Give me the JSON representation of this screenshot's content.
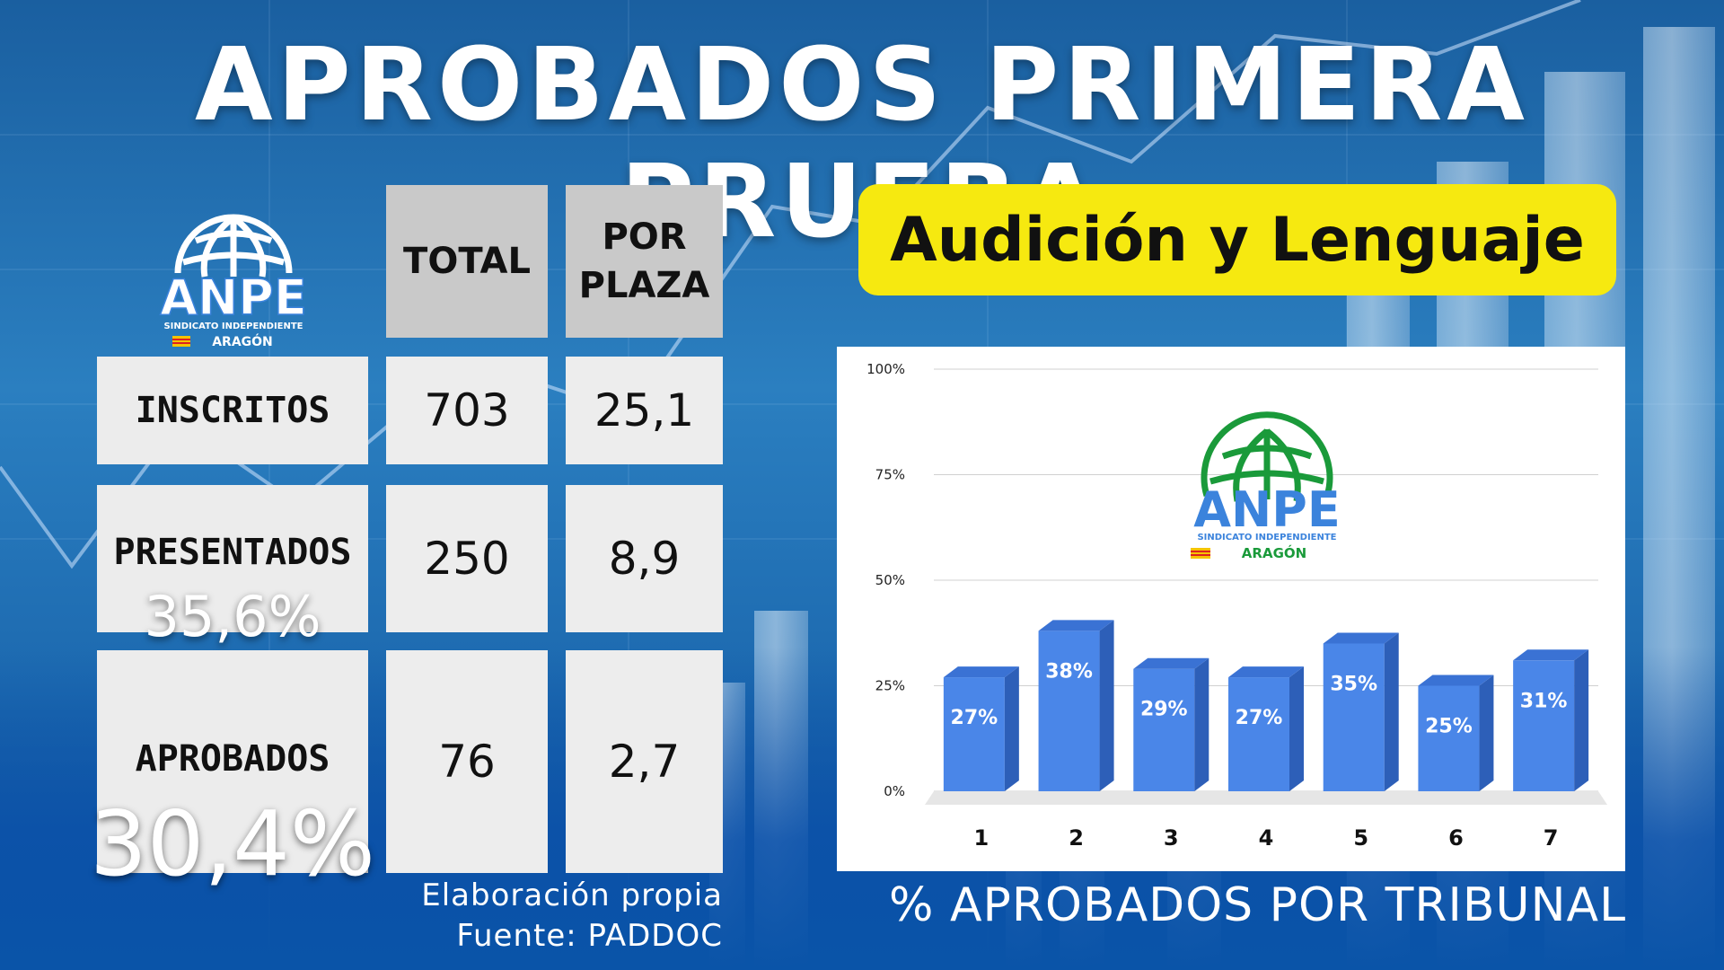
{
  "title": "APROBADOS PRIMERA PRUEBA",
  "subject": "Audición y Lenguaje",
  "logo": {
    "name": "ANPE",
    "subtitle": "SINDICATO INDEPENDIENTE",
    "region": "ARAGÓN"
  },
  "table": {
    "headers": [
      "TOTAL",
      "POR PLAZA"
    ],
    "rows": [
      {
        "label": "INSCRITOS",
        "total": "703",
        "por_plaza": "25,1",
        "pct": ""
      },
      {
        "label": "PRESENTADOS",
        "total": "250",
        "por_plaza": "8,9",
        "pct": "35,6%"
      },
      {
        "label": "APROBADOS",
        "total": "76",
        "por_plaza": "2,7",
        "pct": "30,4%"
      }
    ]
  },
  "source": {
    "line1": "Elaboración propia",
    "line2": "Fuente: PADDOC"
  },
  "chart_caption": "% APROBADOS POR TRIBUNAL",
  "colors": {
    "bar_front": "#4a86e8",
    "bar_side": "#2d5fb8",
    "bar_top": "#3a72d4",
    "highlight": "#f6e910",
    "logo_green": "#1a9a3a",
    "logo_blue": "#3b83dc"
  },
  "chart_data": {
    "type": "bar",
    "categories": [
      "1",
      "2",
      "3",
      "4",
      "5",
      "6",
      "7"
    ],
    "values": [
      27,
      38,
      29,
      27,
      35,
      25,
      31
    ],
    "data_labels": [
      "27%",
      "38%",
      "29%",
      "27%",
      "35%",
      "25%",
      "31%"
    ],
    "y_ticks": [
      "0%",
      "25%",
      "50%",
      "75%",
      "100%"
    ],
    "ylim": [
      0,
      100
    ],
    "grid": true,
    "style": "3d-columns"
  }
}
